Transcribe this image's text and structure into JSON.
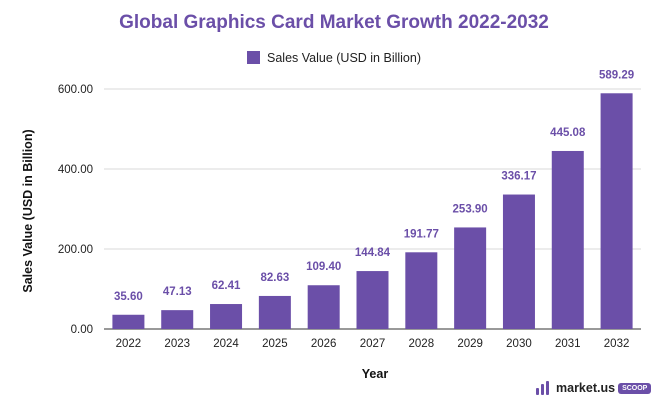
{
  "chart_data": {
    "type": "bar",
    "title": "Global Graphics Card Market Growth 2022-2032",
    "xlabel": "Year",
    "ylabel": "Sales Value (USD in Billion)",
    "categories": [
      "2022",
      "2023",
      "2024",
      "2025",
      "2026",
      "2027",
      "2028",
      "2029",
      "2030",
      "2031",
      "2032"
    ],
    "series": [
      {
        "name": "Sales Value (USD in Billion)",
        "values": [
          35.6,
          47.13,
          62.41,
          82.63,
          109.4,
          144.84,
          191.77,
          253.9,
          336.17,
          445.08,
          589.29
        ]
      }
    ],
    "data_labels": [
      "35.60",
      "47.13",
      "62.41",
      "82.63",
      "109.40",
      "144.84",
      "191.77",
      "253.90",
      "336.17",
      "445.08",
      "589.29"
    ],
    "yticks": [
      "0.00",
      "200.00",
      "400.00",
      "600.00"
    ],
    "ytick_values": [
      0,
      200,
      400,
      600
    ],
    "ylim": [
      0,
      600
    ],
    "grid": true,
    "legend_position": "top-center",
    "colors": {
      "bar": "#6B4FA8",
      "label": "#6B4FA8",
      "grid": "#d9d9d9",
      "axis": "#333333"
    }
  },
  "brand": {
    "name": "market.us",
    "tag": "SCOOP"
  }
}
